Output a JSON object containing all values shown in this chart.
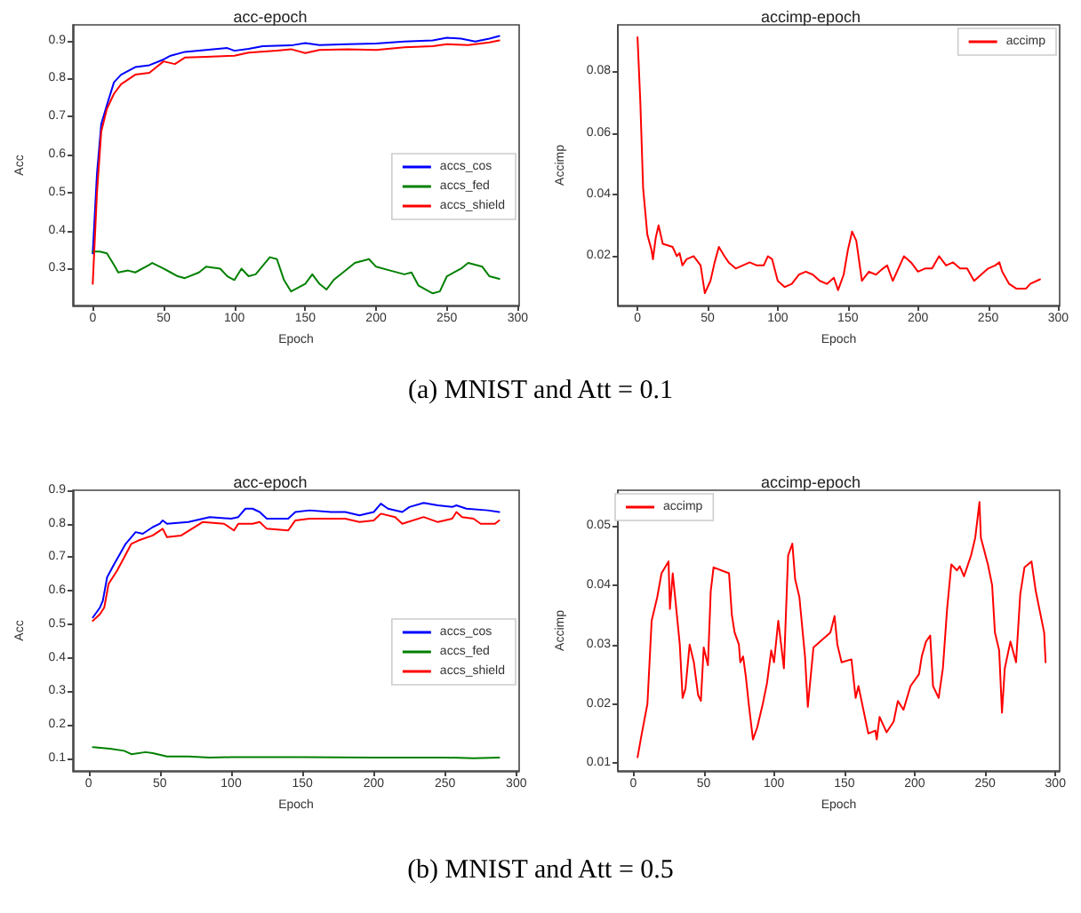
{
  "chart_data": [
    {
      "type": "line",
      "title": "acc-epoch",
      "xlabel": "Epoch",
      "ylabel": "Acc",
      "annotations": [
        "(a) MNIST and Att = 0.1"
      ],
      "xlim": [
        -14,
        301
      ],
      "xticks": [
        0,
        50,
        100,
        150,
        200,
        250,
        300
      ],
      "ylim": [
        0.203,
        0.941
      ],
      "yticks": [
        0.3,
        0.4,
        0.5,
        0.6,
        0.7,
        0.8,
        0.9
      ],
      "grid": false,
      "legend": "right",
      "marker": "none",
      "line_style": "solid",
      "series": [
        {
          "name": "accs_cos",
          "color": "#0000ff",
          "x": [
            0,
            3,
            6,
            10,
            15,
            20,
            30,
            40,
            50,
            55,
            65,
            80,
            95,
            100,
            110,
            120,
            140,
            150,
            160,
            180,
            200,
            220,
            240,
            250,
            260,
            270,
            280,
            287
          ],
          "values": [
            0.34,
            0.55,
            0.68,
            0.73,
            0.79,
            0.81,
            0.83,
            0.835,
            0.85,
            0.86,
            0.87,
            0.875,
            0.88,
            0.873,
            0.878,
            0.885,
            0.887,
            0.893,
            0.888,
            0.89,
            0.892,
            0.897,
            0.9,
            0.907,
            0.905,
            0.897,
            0.905,
            0.912
          ]
        },
        {
          "name": "accs_fed",
          "color": "#008000",
          "x": [
            0,
            5,
            10,
            15,
            18,
            25,
            30,
            40,
            42,
            50,
            55,
            60,
            65,
            75,
            80,
            90,
            95,
            100,
            105,
            110,
            115,
            125,
            130,
            135,
            140,
            145,
            150,
            155,
            160,
            165,
            170,
            180,
            185,
            195,
            200,
            210,
            220,
            225,
            230,
            240,
            245,
            250,
            260,
            265,
            275,
            280,
            287
          ],
          "values": [
            0.345,
            0.345,
            0.34,
            0.31,
            0.29,
            0.295,
            0.29,
            0.31,
            0.315,
            0.3,
            0.29,
            0.28,
            0.275,
            0.29,
            0.305,
            0.3,
            0.28,
            0.27,
            0.3,
            0.28,
            0.285,
            0.33,
            0.325,
            0.27,
            0.24,
            0.25,
            0.26,
            0.285,
            0.26,
            0.245,
            0.27,
            0.3,
            0.315,
            0.325,
            0.305,
            0.295,
            0.285,
            0.29,
            0.255,
            0.235,
            0.24,
            0.28,
            0.3,
            0.315,
            0.305,
            0.28,
            0.273
          ]
        },
        {
          "name": "accs_shield",
          "color": "#ff0000",
          "x": [
            0,
            1,
            3,
            6,
            10,
            15,
            20,
            30,
            40,
            45,
            50,
            58,
            65,
            80,
            100,
            110,
            130,
            140,
            150,
            160,
            180,
            200,
            220,
            240,
            250,
            265,
            280,
            287
          ],
          "values": [
            0.26,
            0.34,
            0.5,
            0.66,
            0.72,
            0.76,
            0.785,
            0.81,
            0.815,
            0.83,
            0.845,
            0.838,
            0.855,
            0.857,
            0.86,
            0.868,
            0.873,
            0.877,
            0.867,
            0.875,
            0.877,
            0.875,
            0.882,
            0.885,
            0.89,
            0.888,
            0.895,
            0.9
          ]
        }
      ]
    },
    {
      "type": "line",
      "title": "accimp-epoch",
      "xlabel": "Epoch",
      "ylabel": "Accimp",
      "xlim": [
        -14,
        301
      ],
      "xticks": [
        0,
        50,
        100,
        150,
        200,
        250,
        300
      ],
      "ylim": [
        0.004,
        0.095
      ],
      "yticks": [
        0.02,
        0.04,
        0.06,
        0.08
      ],
      "grid": false,
      "legend": "top right",
      "marker": "none",
      "line_style": "solid",
      "series": [
        {
          "name": "accimp",
          "color": "#ff0000",
          "x": [
            0,
            2,
            4,
            7,
            10,
            11,
            13,
            15,
            18,
            25,
            28,
            30,
            32,
            35,
            40,
            45,
            48,
            52,
            55,
            58,
            62,
            65,
            70,
            80,
            85,
            90,
            93,
            96,
            100,
            105,
            110,
            115,
            120,
            125,
            130,
            135,
            140,
            143,
            147,
            150,
            153,
            156,
            160,
            165,
            170,
            175,
            178,
            182,
            185,
            190,
            195,
            200,
            205,
            210,
            215,
            220,
            225,
            230,
            235,
            240,
            245,
            250,
            255,
            258,
            260,
            265,
            270,
            277,
            280,
            287
          ],
          "values": [
            0.091,
            0.07,
            0.042,
            0.027,
            0.022,
            0.019,
            0.026,
            0.03,
            0.024,
            0.023,
            0.02,
            0.021,
            0.017,
            0.019,
            0.02,
            0.017,
            0.008,
            0.012,
            0.018,
            0.023,
            0.02,
            0.018,
            0.016,
            0.018,
            0.017,
            0.017,
            0.02,
            0.019,
            0.012,
            0.01,
            0.011,
            0.014,
            0.015,
            0.014,
            0.012,
            0.011,
            0.013,
            0.009,
            0.014,
            0.022,
            0.028,
            0.025,
            0.012,
            0.015,
            0.014,
            0.016,
            0.017,
            0.012,
            0.015,
            0.02,
            0.018,
            0.015,
            0.016,
            0.016,
            0.02,
            0.017,
            0.018,
            0.016,
            0.016,
            0.012,
            0.014,
            0.016,
            0.017,
            0.018,
            0.015,
            0.011,
            0.0095,
            0.0095,
            0.011,
            0.0125
          ]
        }
      ]
    },
    {
      "type": "line",
      "title": "acc-epoch",
      "xlabel": "Epoch",
      "ylabel": "Acc",
      "annotations": [
        "(b) MNIST and Att = 0.5"
      ],
      "xlim": [
        -11,
        302
      ],
      "xticks": [
        0,
        50,
        100,
        150,
        200,
        250,
        300
      ],
      "ylim": [
        0.062,
        0.9
      ],
      "yticks": [
        0.1,
        0.2,
        0.3,
        0.4,
        0.5,
        0.6,
        0.7,
        0.8,
        0.9
      ],
      "grid": false,
      "legend": "right",
      "marker": "none",
      "line_style": "solid",
      "series": [
        {
          "name": "accs_cos",
          "color": "#0000ff",
          "x": [
            3,
            8,
            10,
            13,
            18,
            22,
            26,
            30,
            33,
            38,
            45,
            50,
            52,
            55,
            70,
            85,
            100,
            105,
            110,
            115,
            120,
            125,
            140,
            145,
            155,
            170,
            180,
            190,
            200,
            205,
            210,
            220,
            225,
            235,
            245,
            255,
            258,
            265,
            280,
            288
          ],
          "values": [
            0.52,
            0.55,
            0.57,
            0.64,
            0.68,
            0.71,
            0.74,
            0.76,
            0.775,
            0.77,
            0.79,
            0.8,
            0.81,
            0.8,
            0.805,
            0.82,
            0.815,
            0.82,
            0.845,
            0.845,
            0.835,
            0.815,
            0.815,
            0.835,
            0.84,
            0.835,
            0.835,
            0.825,
            0.835,
            0.86,
            0.845,
            0.835,
            0.85,
            0.862,
            0.855,
            0.85,
            0.855,
            0.845,
            0.84,
            0.835
          ]
        },
        {
          "name": "accs_fed",
          "color": "#008000",
          "x": [
            3,
            15,
            25,
            30,
            40,
            45,
            55,
            70,
            85,
            100,
            150,
            200,
            250,
            270,
            288
          ],
          "values": [
            0.133,
            0.128,
            0.122,
            0.112,
            0.118,
            0.115,
            0.105,
            0.105,
            0.102,
            0.103,
            0.103,
            0.102,
            0.102,
            0.1,
            0.102
          ]
        },
        {
          "name": "accs_shield",
          "color": "#ff0000",
          "x": [
            3,
            8,
            11,
            14,
            20,
            25,
            30,
            35,
            45,
            52,
            55,
            65,
            80,
            95,
            102,
            105,
            115,
            120,
            125,
            140,
            145,
            155,
            180,
            190,
            200,
            205,
            215,
            220,
            235,
            245,
            255,
            258,
            262,
            270,
            275,
            285,
            288
          ],
          "values": [
            0.51,
            0.53,
            0.55,
            0.62,
            0.66,
            0.7,
            0.74,
            0.75,
            0.765,
            0.785,
            0.76,
            0.765,
            0.805,
            0.8,
            0.78,
            0.8,
            0.8,
            0.805,
            0.785,
            0.78,
            0.81,
            0.815,
            0.815,
            0.805,
            0.81,
            0.83,
            0.82,
            0.8,
            0.82,
            0.805,
            0.815,
            0.835,
            0.82,
            0.815,
            0.8,
            0.8,
            0.81
          ]
        }
      ]
    },
    {
      "type": "line",
      "title": "accimp-epoch",
      "xlabel": "Epoch",
      "ylabel": "Accimp",
      "xlim": [
        -11,
        303
      ],
      "xticks": [
        0,
        50,
        100,
        150,
        200,
        250,
        300
      ],
      "ylim": [
        0.0087,
        0.056
      ],
      "yticks": [
        0.01,
        0.02,
        0.03,
        0.04,
        0.05
      ],
      "grid": false,
      "legend": "top left",
      "marker": "none",
      "line_style": "solid",
      "series": [
        {
          "name": "accimp",
          "color": "#ff0000",
          "x": [
            3,
            6,
            10,
            13,
            17,
            20,
            25,
            26,
            28,
            33,
            35,
            37,
            40,
            43,
            46,
            48,
            50,
            53,
            55,
            57,
            68,
            70,
            72,
            75,
            76,
            78,
            80,
            82,
            85,
            88,
            92,
            95,
            98,
            100,
            103,
            107,
            110,
            113,
            115,
            118,
            122,
            124,
            128,
            140,
            143,
            145,
            148,
            155,
            158,
            160,
            167,
            172,
            173,
            175,
            180,
            185,
            188,
            192,
            197,
            203,
            205,
            208,
            211,
            213,
            217,
            220,
            223,
            226,
            230,
            232,
            235,
            240,
            243,
            246,
            247,
            252,
            255,
            257,
            260,
            262,
            264,
            268,
            272,
            275,
            278,
            283,
            286,
            292,
            293
          ],
          "values": [
            0.011,
            0.015,
            0.02,
            0.034,
            0.038,
            0.042,
            0.044,
            0.036,
            0.042,
            0.03,
            0.021,
            0.0225,
            0.03,
            0.027,
            0.0215,
            0.0205,
            0.0295,
            0.0265,
            0.039,
            0.043,
            0.042,
            0.035,
            0.032,
            0.03,
            0.027,
            0.028,
            0.0245,
            0.02,
            0.014,
            0.016,
            0.02,
            0.0235,
            0.029,
            0.027,
            0.034,
            0.026,
            0.045,
            0.047,
            0.041,
            0.038,
            0.028,
            0.0195,
            0.0295,
            0.032,
            0.0348,
            0.03,
            0.027,
            0.0275,
            0.021,
            0.023,
            0.015,
            0.0155,
            0.014,
            0.0178,
            0.0152,
            0.017,
            0.0205,
            0.019,
            0.023,
            0.025,
            0.028,
            0.0305,
            0.0315,
            0.023,
            0.021,
            0.026,
            0.036,
            0.0435,
            0.0425,
            0.0432,
            0.0415,
            0.045,
            0.048,
            0.054,
            0.048,
            0.0435,
            0.04,
            0.032,
            0.029,
            0.0185,
            0.026,
            0.0305,
            0.027,
            0.0385,
            0.043,
            0.044,
            0.039,
            0.032,
            0.027
          ]
        }
      ]
    }
  ]
}
